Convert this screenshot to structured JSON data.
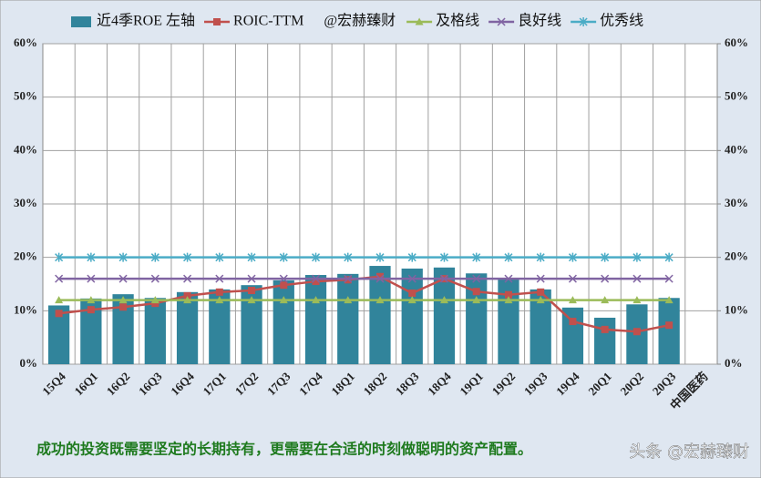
{
  "chart_data": {
    "type": "bar",
    "categories": [
      "15Q4",
      "16Q1",
      "16Q2",
      "16Q3",
      "16Q4",
      "17Q1",
      "17Q2",
      "17Q3",
      "17Q4",
      "18Q1",
      "18Q2",
      "18Q3",
      "18Q4",
      "19Q1",
      "19Q2",
      "19Q3",
      "19Q4",
      "20Q1",
      "20Q2",
      "20Q3",
      "中国医药"
    ],
    "series": [
      {
        "name": "近4季ROE 左轴",
        "type": "bar",
        "marker": "none",
        "color": "#31849b",
        "values": [
          11,
          12.3,
          13.1,
          12.4,
          13.5,
          14,
          14.8,
          15.7,
          16.7,
          16.9,
          18.4,
          17.9,
          18.1,
          17,
          16,
          14,
          10.6,
          8.7,
          11.2,
          12.4,
          null
        ]
      },
      {
        "name": "ROIC-TTM",
        "type": "line",
        "marker": "square",
        "color": "#c0504d",
        "values": [
          9.5,
          10.2,
          10.7,
          11.4,
          12.8,
          13.5,
          13.8,
          14.8,
          15.5,
          15.8,
          16.4,
          13.3,
          16,
          13.6,
          13,
          13.5,
          8,
          6.5,
          6.1,
          7.3,
          null
        ]
      },
      {
        "name": "及格线",
        "type": "line",
        "marker": "triangle",
        "color": "#9bbb59",
        "values": [
          12,
          12,
          12,
          12,
          12,
          12,
          12,
          12,
          12,
          12,
          12,
          12,
          12,
          12,
          12,
          12,
          12,
          12,
          12,
          12,
          null
        ]
      },
      {
        "name": "良好线",
        "type": "line",
        "marker": "x",
        "color": "#8064a2",
        "values": [
          16,
          16,
          16,
          16,
          16,
          16,
          16,
          16,
          16,
          16,
          16,
          16,
          16,
          16,
          16,
          16,
          16,
          16,
          16,
          16,
          null
        ]
      },
      {
        "name": "优秀线",
        "type": "line",
        "marker": "star",
        "color": "#4bacc6",
        "values": [
          20,
          20,
          20,
          20,
          20,
          20,
          20,
          20,
          20,
          20,
          20,
          20,
          20,
          20,
          20,
          20,
          20,
          20,
          20,
          20,
          null
        ]
      }
    ],
    "legend_text": "@宏赫臻财",
    "ylim": [
      0,
      60
    ],
    "yticks": [
      {
        "value": 0,
        "label": "0%"
      },
      {
        "value": 10,
        "label": "10%"
      },
      {
        "value": 20,
        "label": "20%"
      },
      {
        "value": 30,
        "label": "30%"
      },
      {
        "value": 40,
        "label": "40%"
      },
      {
        "value": 50,
        "label": "50%"
      },
      {
        "value": 60,
        "label": "60%"
      }
    ],
    "y2lim": [
      0,
      60
    ],
    "y2ticks": [
      {
        "value": 0,
        "label": "0%"
      },
      {
        "value": 10,
        "label": "10%"
      },
      {
        "value": 20,
        "label": "20%"
      },
      {
        "value": 30,
        "label": "30%"
      },
      {
        "value": 40,
        "label": "40%"
      },
      {
        "value": 50,
        "label": "50%"
      },
      {
        "value": 60,
        "label": "60%"
      }
    ],
    "grid": true,
    "legend": "top"
  },
  "footer": "成功的投资既需要坚定的长期持有，更需要在合适的时刻做聪明的资产配置。",
  "watermark": "头条 @宏赫臻财"
}
